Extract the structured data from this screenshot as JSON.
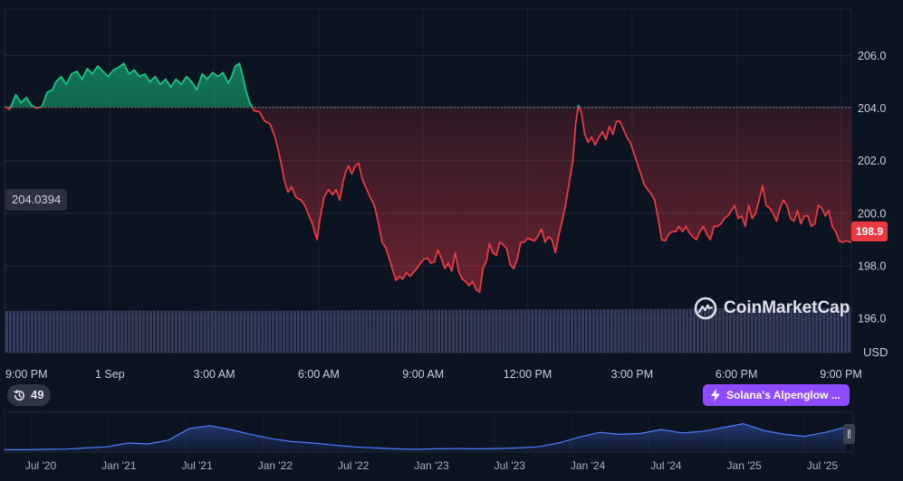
{
  "chart_data": {
    "type": "area",
    "currency": "USD",
    "y_axis": {
      "ticks": [
        196.0,
        198.0,
        200.0,
        202.0,
        204.0,
        206.0
      ],
      "tick_labels": [
        "196.0",
        "198.0",
        "200.0",
        "202.0",
        "204.0",
        "206.0"
      ],
      "unit_label": "USD",
      "range": [
        194.7,
        207.7
      ]
    },
    "x_axis": {
      "tick_labels": [
        "9:00 PM",
        "1 Sep",
        "3:00 AM",
        "6:00 AM",
        "9:00 AM",
        "12:00 PM",
        "3:00 PM",
        "6:00 PM",
        "9:00 PM"
      ],
      "tick_hours": [
        0,
        3,
        6,
        9,
        12,
        15,
        18,
        21,
        24
      ],
      "range": [
        0,
        24.3
      ]
    },
    "reference_price": 204.0394,
    "reference_label": "204.0394",
    "current_price_label": "198.9",
    "colors": {
      "up": "#16c784",
      "down": "#ea3943",
      "grid": "#222a37",
      "volume": "#3c4566",
      "overview_line": "#4d7cff"
    },
    "series": [
      {
        "values": [
          [
            0.0,
            204.05
          ],
          [
            0.12,
            203.95
          ],
          [
            0.3,
            204.5
          ],
          [
            0.45,
            204.2
          ],
          [
            0.6,
            204.4
          ],
          [
            0.75,
            204.1
          ],
          [
            0.9,
            204.0
          ],
          [
            1.05,
            204.05
          ],
          [
            1.2,
            204.6
          ],
          [
            1.35,
            204.7
          ],
          [
            1.45,
            205.0
          ],
          [
            1.6,
            205.2
          ],
          [
            1.75,
            204.9
          ],
          [
            1.9,
            205.3
          ],
          [
            2.05,
            205.4
          ],
          [
            2.2,
            205.1
          ],
          [
            2.35,
            205.5
          ],
          [
            2.5,
            205.3
          ],
          [
            2.65,
            205.6
          ],
          [
            2.8,
            205.4
          ],
          [
            2.95,
            205.2
          ],
          [
            3.1,
            205.45
          ],
          [
            3.25,
            205.55
          ],
          [
            3.4,
            205.7
          ],
          [
            3.55,
            205.3
          ],
          [
            3.7,
            205.45
          ],
          [
            3.85,
            205.2
          ],
          [
            4.0,
            205.3
          ],
          [
            4.15,
            205.0
          ],
          [
            4.3,
            205.2
          ],
          [
            4.45,
            204.9
          ],
          [
            4.6,
            205.1
          ],
          [
            4.75,
            204.8
          ],
          [
            4.9,
            205.1
          ],
          [
            5.05,
            204.9
          ],
          [
            5.2,
            205.2
          ],
          [
            5.35,
            205.0
          ],
          [
            5.5,
            204.7
          ],
          [
            5.65,
            205.3
          ],
          [
            5.8,
            205.1
          ],
          [
            5.95,
            205.35
          ],
          [
            6.1,
            205.2
          ],
          [
            6.25,
            205.35
          ],
          [
            6.4,
            204.95
          ],
          [
            6.5,
            205.2
          ],
          [
            6.6,
            205.6
          ],
          [
            6.72,
            205.7
          ],
          [
            6.82,
            205.2
          ],
          [
            6.92,
            204.6
          ],
          [
            7.02,
            204.2
          ],
          [
            7.15,
            203.9
          ],
          [
            7.3,
            203.85
          ],
          [
            7.45,
            203.5
          ],
          [
            7.6,
            203.4
          ],
          [
            7.72,
            203.0
          ],
          [
            7.82,
            202.5
          ],
          [
            7.92,
            201.9
          ],
          [
            8.02,
            201.2
          ],
          [
            8.12,
            200.8
          ],
          [
            8.22,
            201.0
          ],
          [
            8.35,
            200.6
          ],
          [
            8.5,
            200.5
          ],
          [
            8.6,
            200.3
          ],
          [
            8.72,
            199.9
          ],
          [
            8.82,
            199.6
          ],
          [
            8.95,
            199.0
          ],
          [
            9.05,
            199.9
          ],
          [
            9.15,
            200.6
          ],
          [
            9.28,
            200.9
          ],
          [
            9.4,
            200.7
          ],
          [
            9.5,
            200.9
          ],
          [
            9.6,
            200.5
          ],
          [
            9.7,
            201.2
          ],
          [
            9.78,
            201.6
          ],
          [
            9.86,
            201.8
          ],
          [
            9.95,
            201.5
          ],
          [
            10.05,
            201.8
          ],
          [
            10.15,
            201.9
          ],
          [
            10.25,
            201.3
          ],
          [
            10.35,
            201.0
          ],
          [
            10.48,
            200.6
          ],
          [
            10.6,
            200.3
          ],
          [
            10.72,
            199.6
          ],
          [
            10.82,
            198.9
          ],
          [
            10.92,
            198.7
          ],
          [
            11.02,
            198.3
          ],
          [
            11.12,
            197.85
          ],
          [
            11.22,
            197.45
          ],
          [
            11.32,
            197.6
          ],
          [
            11.42,
            197.5
          ],
          [
            11.52,
            197.75
          ],
          [
            11.62,
            197.6
          ],
          [
            11.72,
            197.75
          ],
          [
            11.82,
            197.9
          ],
          [
            11.92,
            198.1
          ],
          [
            12.02,
            198.25
          ],
          [
            12.12,
            198.3
          ],
          [
            12.22,
            198.1
          ],
          [
            12.32,
            198.15
          ],
          [
            12.42,
            198.6
          ],
          [
            12.52,
            198.3
          ],
          [
            12.62,
            197.9
          ],
          [
            12.72,
            198.1
          ],
          [
            12.82,
            197.8
          ],
          [
            12.92,
            198.5
          ],
          [
            13.02,
            197.8
          ],
          [
            13.12,
            197.5
          ],
          [
            13.22,
            197.4
          ],
          [
            13.32,
            197.25
          ],
          [
            13.42,
            197.4
          ],
          [
            13.52,
            197.1
          ],
          [
            13.62,
            197.0
          ],
          [
            13.72,
            197.9
          ],
          [
            13.82,
            198.2
          ],
          [
            13.9,
            198.85
          ],
          [
            14.0,
            198.5
          ],
          [
            14.1,
            198.4
          ],
          [
            14.2,
            198.9
          ],
          [
            14.3,
            198.8
          ],
          [
            14.4,
            198.65
          ],
          [
            14.5,
            198.05
          ],
          [
            14.6,
            197.9
          ],
          [
            14.7,
            198.25
          ],
          [
            14.8,
            198.9
          ],
          [
            14.9,
            198.9
          ],
          [
            15.0,
            199.05
          ],
          [
            15.1,
            199.0
          ],
          [
            15.2,
            198.95
          ],
          [
            15.3,
            199.15
          ],
          [
            15.4,
            199.4
          ],
          [
            15.5,
            198.9
          ],
          [
            15.6,
            199.1
          ],
          [
            15.7,
            199.0
          ],
          [
            15.8,
            198.5
          ],
          [
            15.9,
            199.2
          ],
          [
            16.0,
            199.75
          ],
          [
            16.1,
            200.4
          ],
          [
            16.2,
            201.2
          ],
          [
            16.3,
            202.0
          ],
          [
            16.38,
            203.4
          ],
          [
            16.46,
            204.1
          ],
          [
            16.55,
            203.8
          ],
          [
            16.64,
            203.0
          ],
          [
            16.74,
            202.7
          ],
          [
            16.84,
            202.9
          ],
          [
            16.94,
            202.6
          ],
          [
            17.05,
            202.9
          ],
          [
            17.15,
            203.1
          ],
          [
            17.25,
            202.8
          ],
          [
            17.35,
            203.3
          ],
          [
            17.45,
            203.0
          ],
          [
            17.55,
            203.5
          ],
          [
            17.65,
            203.5
          ],
          [
            17.75,
            203.2
          ],
          [
            17.85,
            202.9
          ],
          [
            17.95,
            202.7
          ],
          [
            18.05,
            202.3
          ],
          [
            18.15,
            201.9
          ],
          [
            18.25,
            201.5
          ],
          [
            18.35,
            201.1
          ],
          [
            18.45,
            200.9
          ],
          [
            18.55,
            200.75
          ],
          [
            18.65,
            200.5
          ],
          [
            18.75,
            199.8
          ],
          [
            18.85,
            199.0
          ],
          [
            18.95,
            198.95
          ],
          [
            19.05,
            199.2
          ],
          [
            19.15,
            199.3
          ],
          [
            19.25,
            199.3
          ],
          [
            19.35,
            199.5
          ],
          [
            19.45,
            199.3
          ],
          [
            19.55,
            199.5
          ],
          [
            19.65,
            199.25
          ],
          [
            19.75,
            199.1
          ],
          [
            19.85,
            199.0
          ],
          [
            19.95,
            199.3
          ],
          [
            20.05,
            199.5
          ],
          [
            20.15,
            199.2
          ],
          [
            20.25,
            199.0
          ],
          [
            20.35,
            199.5
          ],
          [
            20.45,
            199.5
          ],
          [
            20.55,
            199.6
          ],
          [
            20.65,
            199.8
          ],
          [
            20.75,
            199.9
          ],
          [
            20.85,
            200.1
          ],
          [
            20.95,
            200.3
          ],
          [
            21.05,
            199.8
          ],
          [
            21.15,
            199.9
          ],
          [
            21.25,
            199.5
          ],
          [
            21.35,
            200.3
          ],
          [
            21.45,
            199.8
          ],
          [
            21.55,
            200.0
          ],
          [
            21.65,
            200.5
          ],
          [
            21.75,
            201.05
          ],
          [
            21.85,
            200.3
          ],
          [
            21.95,
            200.2
          ],
          [
            22.05,
            200.0
          ],
          [
            22.15,
            199.7
          ],
          [
            22.25,
            200.2
          ],
          [
            22.35,
            200.5
          ],
          [
            22.45,
            200.3
          ],
          [
            22.55,
            199.8
          ],
          [
            22.65,
            199.7
          ],
          [
            22.75,
            200.1
          ],
          [
            22.85,
            199.6
          ],
          [
            22.95,
            199.9
          ],
          [
            23.05,
            199.9
          ],
          [
            23.15,
            199.5
          ],
          [
            23.25,
            199.6
          ],
          [
            23.35,
            200.3
          ],
          [
            23.45,
            200.2
          ],
          [
            23.55,
            199.9
          ],
          [
            23.65,
            200.1
          ],
          [
            23.75,
            199.5
          ],
          [
            23.85,
            199.3
          ],
          [
            23.95,
            198.95
          ],
          [
            24.05,
            198.9
          ],
          [
            24.15,
            198.95
          ],
          [
            24.3,
            198.9
          ]
        ]
      }
    ],
    "volume_relative": [
      0.92,
      0.93,
      0.92,
      0.94,
      0.95,
      0.96,
      0.98,
      1.0
    ],
    "overview": {
      "x_labels": [
        "Jul '20",
        "Jan '21",
        "Jul '21",
        "Jan '22",
        "Jul '22",
        "Jan '23",
        "Jul '23",
        "Jan '24",
        "Jul '24",
        "Jan '25",
        "Jul '25"
      ],
      "relative_values": [
        0.02,
        0.02,
        0.03,
        0.04,
        0.08,
        0.12,
        0.25,
        0.22,
        0.35,
        0.75,
        0.85,
        0.72,
        0.55,
        0.4,
        0.3,
        0.25,
        0.18,
        0.12,
        0.08,
        0.05,
        0.03,
        0.05,
        0.06,
        0.05,
        0.06,
        0.08,
        0.12,
        0.25,
        0.45,
        0.62,
        0.55,
        0.58,
        0.72,
        0.6,
        0.65,
        0.78,
        0.92,
        0.68,
        0.55,
        0.48,
        0.62,
        0.8
      ]
    }
  },
  "badges": {
    "events_count": "49",
    "news_label": "Solana's Alpenglow ..."
  },
  "branding": {
    "watermark": "CoinMarketCap"
  }
}
